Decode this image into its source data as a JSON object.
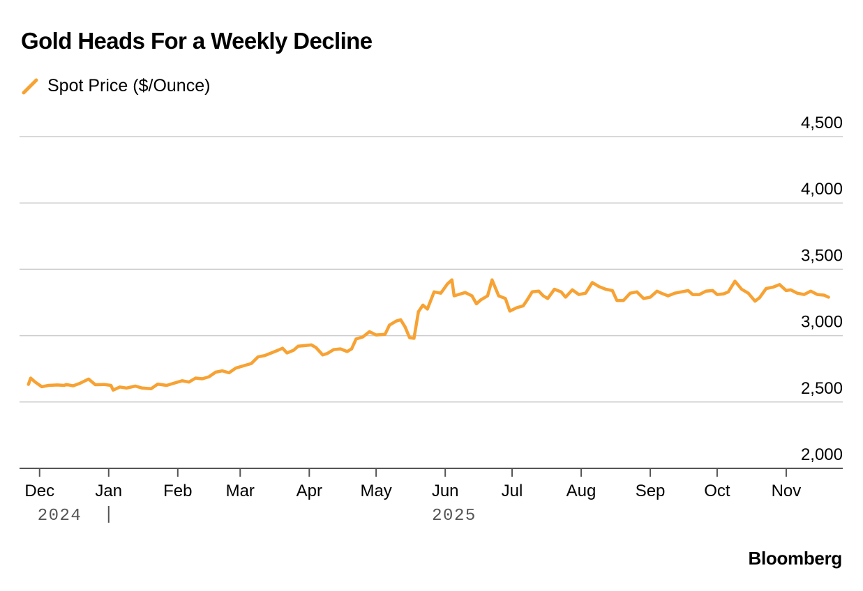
{
  "title": "Gold Heads For a Weekly Decline",
  "source": "Bloomberg",
  "colors": {
    "series": "#F7A233",
    "grid": "#CCCCCC",
    "axis": "#555555",
    "text": "#000000",
    "year_text": "#555555"
  },
  "chart_data": {
    "type": "line",
    "title": "Gold Heads For a Weekly Decline",
    "ylim": [
      2000,
      4500
    ],
    "yticks": [
      4500,
      4000,
      3500,
      3000,
      2500,
      2000
    ],
    "ytick_labels": [
      "4,500",
      "4,000",
      "3,500",
      "3,000",
      "2,500",
      "2,000"
    ],
    "xlim": [
      "2024-11-22",
      "2025-11-27"
    ],
    "xticks": [
      "2024-12-01",
      "2025-01-01",
      "2025-02-01",
      "2025-03-01",
      "2025-04-01",
      "2025-05-01",
      "2025-06-01",
      "2025-07-01",
      "2025-08-01",
      "2025-09-01",
      "2025-10-01",
      "2025-11-01"
    ],
    "xtick_labels": [
      "Dec",
      "Jan",
      "Feb",
      "Mar",
      "Apr",
      "May",
      "Jun",
      "Jul",
      "Aug",
      "Sep",
      "Oct",
      "Nov"
    ],
    "year_labels": [
      {
        "label": "2024",
        "at": "2024-12-10"
      },
      {
        "label": "2025",
        "at": "2025-06-05"
      }
    ],
    "year_separator": "2025-01-01",
    "grid": true,
    "legend_position": "top-left",
    "series": [
      {
        "name": "Spot Price ($/Ounce)",
        "color": "#F7A233",
        "points": [
          [
            "2024-11-26",
            2633
          ],
          [
            "2024-11-27",
            2680
          ],
          [
            "2024-11-29",
            2650
          ],
          [
            "2024-12-02",
            2615
          ],
          [
            "2024-12-05",
            2625
          ],
          [
            "2024-12-09",
            2628
          ],
          [
            "2024-12-12",
            2625
          ],
          [
            "2024-12-13",
            2632
          ],
          [
            "2024-12-16",
            2622
          ],
          [
            "2024-12-19",
            2640
          ],
          [
            "2024-12-23",
            2673
          ],
          [
            "2024-12-26",
            2630
          ],
          [
            "2024-12-30",
            2632
          ],
          [
            "2025-01-02",
            2625
          ],
          [
            "2025-01-03",
            2590
          ],
          [
            "2025-01-06",
            2613
          ],
          [
            "2025-01-09",
            2605
          ],
          [
            "2025-01-13",
            2620
          ],
          [
            "2025-01-16",
            2605
          ],
          [
            "2025-01-20",
            2600
          ],
          [
            "2025-01-23",
            2635
          ],
          [
            "2025-01-27",
            2625
          ],
          [
            "2025-01-30",
            2640
          ],
          [
            "2025-02-03",
            2660
          ],
          [
            "2025-02-06",
            2650
          ],
          [
            "2025-02-09",
            2680
          ],
          [
            "2025-02-12",
            2675
          ],
          [
            "2025-02-15",
            2690
          ],
          [
            "2025-02-18",
            2725
          ],
          [
            "2025-02-21",
            2735
          ],
          [
            "2025-02-24",
            2720
          ],
          [
            "2025-02-27",
            2755
          ],
          [
            "2025-03-03",
            2775
          ],
          [
            "2025-03-06",
            2790
          ],
          [
            "2025-03-09",
            2840
          ],
          [
            "2025-03-12",
            2850
          ],
          [
            "2025-03-15",
            2870
          ],
          [
            "2025-03-18",
            2890
          ],
          [
            "2025-03-20",
            2905
          ],
          [
            "2025-03-22",
            2870
          ],
          [
            "2025-03-25",
            2890
          ],
          [
            "2025-03-27",
            2920
          ],
          [
            "2025-03-30",
            2925
          ],
          [
            "2025-04-02",
            2930
          ],
          [
            "2025-04-04",
            2910
          ],
          [
            "2025-04-07",
            2855
          ],
          [
            "2025-04-09",
            2865
          ],
          [
            "2025-04-12",
            2895
          ],
          [
            "2025-04-15",
            2900
          ],
          [
            "2025-04-18",
            2880
          ],
          [
            "2025-04-20",
            2900
          ],
          [
            "2025-04-22",
            2975
          ],
          [
            "2025-04-25",
            2990
          ],
          [
            "2025-04-28",
            3030
          ],
          [
            "2025-05-01",
            3005
          ],
          [
            "2025-05-05",
            3010
          ],
          [
            "2025-05-07",
            3080
          ],
          [
            "2025-05-10",
            3110
          ],
          [
            "2025-05-12",
            3120
          ],
          [
            "2025-05-14",
            3065
          ],
          [
            "2025-05-16",
            2985
          ],
          [
            "2025-05-18",
            2980
          ],
          [
            "2025-05-20",
            3180
          ],
          [
            "2025-05-22",
            3230
          ],
          [
            "2025-05-24",
            3200
          ],
          [
            "2025-05-27",
            3330
          ],
          [
            "2025-05-30",
            3320
          ],
          [
            "2025-06-02",
            3390
          ],
          [
            "2025-06-04",
            3420
          ],
          [
            "2025-06-05",
            3300
          ],
          [
            "2025-06-07",
            3310
          ],
          [
            "2025-06-10",
            3325
          ],
          [
            "2025-06-13",
            3300
          ],
          [
            "2025-06-15",
            3240
          ],
          [
            "2025-06-17",
            3270
          ],
          [
            "2025-06-20",
            3300
          ],
          [
            "2025-06-22",
            3420
          ],
          [
            "2025-06-25",
            3300
          ],
          [
            "2025-06-28",
            3280
          ],
          [
            "2025-06-30",
            3185
          ],
          [
            "2025-07-03",
            3210
          ],
          [
            "2025-07-06",
            3225
          ],
          [
            "2025-07-08",
            3275
          ],
          [
            "2025-07-10",
            3330
          ],
          [
            "2025-07-13",
            3335
          ],
          [
            "2025-07-15",
            3300
          ],
          [
            "2025-07-17",
            3280
          ],
          [
            "2025-07-20",
            3350
          ],
          [
            "2025-07-23",
            3330
          ],
          [
            "2025-07-25",
            3290
          ],
          [
            "2025-07-28",
            3345
          ],
          [
            "2025-07-31",
            3310
          ],
          [
            "2025-08-03",
            3320
          ],
          [
            "2025-08-06",
            3400
          ],
          [
            "2025-08-09",
            3370
          ],
          [
            "2025-08-12",
            3350
          ],
          [
            "2025-08-15",
            3340
          ],
          [
            "2025-08-17",
            3265
          ],
          [
            "2025-08-20",
            3265
          ],
          [
            "2025-08-23",
            3320
          ],
          [
            "2025-08-26",
            3330
          ],
          [
            "2025-08-29",
            3280
          ],
          [
            "2025-09-01",
            3290
          ],
          [
            "2025-09-04",
            3335
          ],
          [
            "2025-09-06",
            3320
          ],
          [
            "2025-09-09",
            3300
          ],
          [
            "2025-09-12",
            3320
          ],
          [
            "2025-09-15",
            3330
          ],
          [
            "2025-09-18",
            3340
          ],
          [
            "2025-09-20",
            3310
          ],
          [
            "2025-09-23",
            3310
          ],
          [
            "2025-09-26",
            3335
          ],
          [
            "2025-09-29",
            3340
          ],
          [
            "2025-10-01",
            3310
          ],
          [
            "2025-10-04",
            3315
          ],
          [
            "2025-10-06",
            3330
          ],
          [
            "2025-10-09",
            3410
          ],
          [
            "2025-10-12",
            3350
          ],
          [
            "2025-10-15",
            3320
          ],
          [
            "2025-10-18",
            3260
          ],
          [
            "2025-10-20",
            3285
          ],
          [
            "2025-10-23",
            3355
          ],
          [
            "2025-10-26",
            3365
          ],
          [
            "2025-10-29",
            3385
          ],
          [
            "2025-11-01",
            3340
          ],
          [
            "2025-11-03",
            3345
          ],
          [
            "2025-11-06",
            3320
          ],
          [
            "2025-11-09",
            3310
          ],
          [
            "2025-11-12",
            3335
          ],
          [
            "2025-11-15",
            3310
          ],
          [
            "2025-11-18",
            3305
          ],
          [
            "2025-11-20",
            3290
          ]
        ]
      }
    ]
  }
}
